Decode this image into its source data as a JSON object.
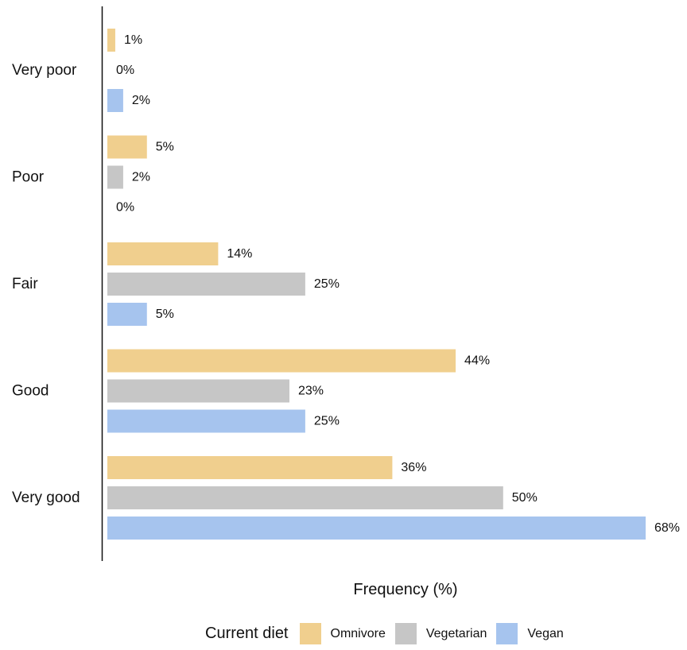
{
  "chart_data": {
    "type": "bar",
    "orientation": "horizontal",
    "categories": [
      "Very poor",
      "Poor",
      "Fair",
      "Good",
      "Very good"
    ],
    "series": [
      {
        "name": "Omnivore",
        "color": "#F0CF8E",
        "values": [
          1,
          5,
          14,
          44,
          36
        ]
      },
      {
        "name": "Vegetarian",
        "color": "#C6C6C6",
        "values": [
          0,
          2,
          25,
          23,
          50
        ]
      },
      {
        "name": "Vegan",
        "color": "#A6C4EE",
        "values": [
          2,
          0,
          5,
          25,
          68
        ]
      }
    ],
    "value_suffix": "%",
    "xlabel": "Frequency (%)",
    "ylabel": "",
    "xlim": [
      0,
      68
    ],
    "grid": false,
    "legend": {
      "title": "Current diet",
      "position": "bottom"
    }
  }
}
